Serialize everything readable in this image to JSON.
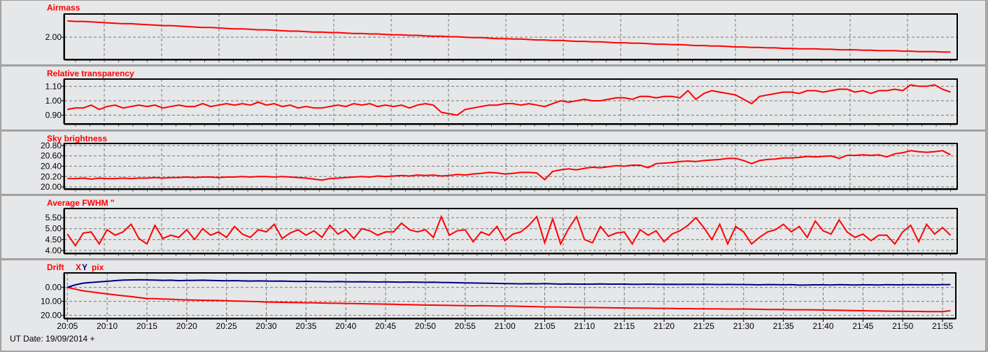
{
  "footer": {
    "ut_date": "UT Date: 19/09/2014 +"
  },
  "drift_legend": {
    "x": "X",
    "y": "Y",
    "unit": "pix"
  },
  "colors": {
    "series_red": "#ff0000",
    "series_navy": "#000080",
    "title": "#ff0000",
    "grid": "#777777",
    "panel_bg": "#e6e7e9"
  },
  "chart_data": {
    "type": "line",
    "x_tick_labels": [
      "20:05",
      "20:10",
      "20:15",
      "20:20",
      "20:25",
      "20:30",
      "20:35",
      "20:40",
      "20:45",
      "20:50",
      "20:55",
      "21:00",
      "21:05",
      "21:10",
      "21:15",
      "21:20",
      "21:25",
      "21:30",
      "21:35",
      "21:40",
      "21:45",
      "21:50",
      "21:55"
    ],
    "x": [
      "20:05",
      "20:06",
      "20:07",
      "20:08",
      "20:09",
      "20:10",
      "20:11",
      "20:12",
      "20:13",
      "20:14",
      "20:15",
      "20:16",
      "20:17",
      "20:18",
      "20:19",
      "20:20",
      "20:21",
      "20:22",
      "20:23",
      "20:24",
      "20:25",
      "20:26",
      "20:27",
      "20:28",
      "20:29",
      "20:30",
      "20:31",
      "20:32",
      "20:33",
      "20:34",
      "20:35",
      "20:36",
      "20:37",
      "20:38",
      "20:39",
      "20:40",
      "20:41",
      "20:42",
      "20:43",
      "20:44",
      "20:45",
      "20:46",
      "20:47",
      "20:48",
      "20:49",
      "20:50",
      "20:51",
      "20:52",
      "20:53",
      "20:54",
      "20:55",
      "20:56",
      "20:57",
      "20:58",
      "20:59",
      "21:00",
      "21:01",
      "21:02",
      "21:03",
      "21:04",
      "21:05",
      "21:06",
      "21:07",
      "21:08",
      "21:09",
      "21:10",
      "21:11",
      "21:12",
      "21:13",
      "21:14",
      "21:15",
      "21:16",
      "21:17",
      "21:18",
      "21:19",
      "21:20",
      "21:21",
      "21:22",
      "21:23",
      "21:24",
      "21:25",
      "21:26",
      "21:27",
      "21:28",
      "21:29",
      "21:30",
      "21:31",
      "21:32",
      "21:33",
      "21:34",
      "21:35",
      "21:36",
      "21:37",
      "21:38",
      "21:39",
      "21:40",
      "21:41",
      "21:42",
      "21:43",
      "21:44",
      "21:45",
      "21:46",
      "21:47",
      "21:48",
      "21:49",
      "21:50",
      "21:51",
      "21:52",
      "21:53",
      "21:54",
      "21:55",
      "21:56"
    ],
    "panels": [
      {
        "title": "Airmass",
        "ylim": [
          1.52,
          2.5
        ],
        "y_ticks": [
          2.0
        ],
        "y_tick_labels": [
          "2.00"
        ],
        "grid": true,
        "series": [
          {
            "color": "#ff0000",
            "values": [
              2.35,
              2.34,
              2.34,
              2.33,
              2.32,
              2.31,
              2.3,
              2.29,
              2.29,
              2.28,
              2.27,
              2.26,
              2.25,
              2.25,
              2.24,
              2.23,
              2.22,
              2.21,
              2.21,
              2.2,
              2.19,
              2.18,
              2.18,
              2.17,
              2.16,
              2.16,
              2.15,
              2.14,
              2.13,
              2.13,
              2.12,
              2.11,
              2.11,
              2.1,
              2.1,
              2.09,
              2.08,
              2.08,
              2.07,
              2.07,
              2.06,
              2.05,
              2.05,
              2.04,
              2.04,
              2.03,
              2.02,
              2.02,
              2.01,
              2.01,
              2.0,
              1.99,
              1.99,
              1.98,
              1.97,
              1.97,
              1.96,
              1.96,
              1.95,
              1.94,
              1.94,
              1.93,
              1.93,
              1.92,
              1.91,
              1.91,
              1.9,
              1.9,
              1.89,
              1.88,
              1.88,
              1.87,
              1.87,
              1.86,
              1.85,
              1.85,
              1.84,
              1.84,
              1.83,
              1.82,
              1.82,
              1.81,
              1.81,
              1.8,
              1.79,
              1.79,
              1.78,
              1.78,
              1.77,
              1.77,
              1.76,
              1.76,
              1.75,
              1.75,
              1.75,
              1.74,
              1.74,
              1.73,
              1.73,
              1.73,
              1.72,
              1.72,
              1.71,
              1.71,
              1.71,
              1.7,
              1.7,
              1.69,
              1.69,
              1.69,
              1.68,
              1.68
            ]
          }
        ]
      },
      {
        "title": "Relative transparency",
        "ylim": [
          0.84,
          1.15
        ],
        "y_ticks": [
          1.1,
          1.0,
          0.9
        ],
        "y_tick_labels": [
          "1.10",
          "1.00",
          "0.90"
        ],
        "grid": true,
        "series": [
          {
            "color": "#ff0000",
            "values": [
              0.94,
              0.95,
              0.95,
              0.97,
              0.94,
              0.96,
              0.97,
              0.95,
              0.96,
              0.97,
              0.96,
              0.97,
              0.95,
              0.96,
              0.97,
              0.96,
              0.96,
              0.98,
              0.96,
              0.97,
              0.98,
              0.97,
              0.98,
              0.97,
              0.99,
              0.97,
              0.98,
              0.96,
              0.97,
              0.95,
              0.96,
              0.95,
              0.95,
              0.96,
              0.97,
              0.96,
              0.98,
              0.97,
              0.98,
              0.96,
              0.97,
              0.96,
              0.97,
              0.95,
              0.97,
              0.98,
              0.97,
              0.92,
              0.91,
              0.9,
              0.94,
              0.95,
              0.96,
              0.97,
              0.97,
              0.98,
              0.98,
              0.97,
              0.98,
              0.97,
              0.96,
              0.98,
              1.0,
              0.99,
              1.0,
              1.01,
              1.0,
              1.0,
              1.01,
              1.02,
              1.02,
              1.01,
              1.03,
              1.03,
              1.02,
              1.03,
              1.03,
              1.02,
              1.07,
              1.01,
              1.05,
              1.07,
              1.06,
              1.05,
              1.04,
              1.01,
              0.98,
              1.03,
              1.04,
              1.05,
              1.06,
              1.06,
              1.05,
              1.07,
              1.07,
              1.06,
              1.07,
              1.08,
              1.08,
              1.06,
              1.07,
              1.05,
              1.07,
              1.07,
              1.08,
              1.07,
              1.11,
              1.1,
              1.1,
              1.11,
              1.08,
              1.06
            ]
          }
        ]
      },
      {
        "title": "Sky brightness",
        "ylim": [
          19.96,
          20.84
        ],
        "y_ticks": [
          20.8,
          20.6,
          20.4,
          20.2,
          20.0
        ],
        "y_tick_labels": [
          "20.80",
          "20.60",
          "20.40",
          "20.20",
          "20.00"
        ],
        "grid": true,
        "series": [
          {
            "color": "#ff0000",
            "values": [
              20.16,
              20.16,
              20.17,
              20.15,
              20.17,
              20.16,
              20.16,
              20.17,
              20.16,
              20.17,
              20.17,
              20.18,
              20.17,
              20.18,
              20.18,
              20.19,
              20.18,
              20.19,
              20.19,
              20.18,
              20.19,
              20.19,
              20.2,
              20.19,
              20.2,
              20.2,
              20.19,
              20.2,
              20.19,
              20.18,
              20.17,
              20.15,
              20.13,
              20.16,
              20.17,
              20.18,
              20.19,
              20.2,
              20.19,
              20.21,
              20.2,
              20.21,
              20.22,
              20.21,
              20.23,
              20.22,
              20.23,
              20.21,
              20.22,
              20.24,
              20.23,
              20.25,
              20.26,
              20.28,
              20.27,
              20.25,
              20.26,
              20.28,
              20.28,
              20.27,
              20.14,
              20.3,
              20.33,
              20.35,
              20.33,
              20.36,
              20.38,
              20.37,
              20.39,
              20.41,
              20.4,
              20.42,
              20.42,
              20.37,
              20.45,
              20.46,
              20.47,
              20.49,
              20.5,
              20.49,
              20.51,
              20.52,
              20.53,
              20.55,
              20.55,
              20.51,
              20.45,
              20.51,
              20.53,
              20.54,
              20.56,
              20.56,
              20.57,
              20.59,
              20.58,
              20.59,
              20.6,
              20.55,
              20.61,
              20.61,
              20.62,
              20.61,
              20.62,
              20.58,
              20.64,
              20.66,
              20.7,
              20.68,
              20.67,
              20.68,
              20.7,
              20.62
            ]
          }
        ]
      },
      {
        "title": "Average FWHM \"",
        "ylim": [
          3.87,
          5.92
        ],
        "y_ticks": [
          5.5,
          5.0,
          4.5,
          4.0
        ],
        "y_tick_labels": [
          "5.50",
          "5.00",
          "4.50",
          "4.00"
        ],
        "grid": true,
        "series": [
          {
            "color": "#ff0000",
            "values": [
              4.75,
              4.22,
              4.8,
              4.85,
              4.3,
              4.95,
              4.7,
              4.85,
              5.2,
              4.55,
              4.3,
              5.15,
              4.55,
              4.7,
              4.6,
              4.95,
              4.5,
              5.0,
              4.7,
              4.85,
              4.6,
              5.1,
              4.75,
              4.6,
              4.95,
              4.85,
              5.2,
              4.55,
              4.8,
              4.95,
              4.7,
              4.9,
              4.6,
              5.15,
              4.75,
              4.95,
              4.55,
              5.0,
              4.9,
              4.7,
              4.85,
              4.85,
              5.25,
              4.95,
              4.85,
              4.95,
              4.6,
              5.55,
              4.7,
              4.9,
              4.95,
              4.4,
              4.85,
              4.7,
              5.1,
              4.45,
              4.75,
              4.85,
              5.15,
              5.55,
              4.35,
              5.45,
              4.3,
              5.0,
              5.55,
              4.5,
              4.35,
              5.1,
              4.65,
              4.8,
              4.85,
              4.3,
              4.95,
              4.7,
              4.9,
              4.4,
              4.75,
              4.9,
              5.15,
              5.5,
              5.05,
              4.5,
              5.2,
              4.3,
              5.1,
              4.85,
              4.3,
              4.6,
              4.85,
              4.95,
              5.2,
              4.85,
              5.1,
              4.6,
              5.35,
              4.9,
              4.75,
              5.4,
              4.85,
              4.6,
              4.75,
              4.45,
              4.7,
              4.7,
              4.3,
              4.85,
              5.15,
              4.4,
              5.2,
              4.75,
              5.05,
              4.7
            ]
          }
        ]
      },
      {
        "title": "Drift",
        "ylim": [
          -10.3,
          22.2
        ],
        "y_axis_inverted": true,
        "y_ticks": [
          0,
          10,
          20
        ],
        "y_tick_labels": [
          "0.00",
          "10.00",
          "20.00"
        ],
        "grid": true,
        "series": [
          {
            "name": "X",
            "color": "#ff0000",
            "values": [
              0.0,
              1.3,
              2.5,
              3.2,
              4.0,
              4.7,
              5.4,
              6.0,
              6.6,
              7.3,
              8.0,
              8.1,
              8.3,
              8.5,
              8.8,
              9.0,
              9.1,
              9.2,
              9.3,
              9.4,
              9.6,
              9.8,
              9.9,
              10.1,
              10.2,
              10.5,
              10.6,
              10.7,
              10.8,
              10.9,
              11.0,
              11.1,
              11.2,
              11.3,
              11.4,
              11.5,
              11.6,
              11.7,
              11.8,
              11.9,
              12.0,
              12.1,
              12.3,
              12.4,
              12.5,
              12.7,
              12.7,
              12.8,
              12.9,
              13.0,
              13.1,
              13.2,
              13.1,
              13.2,
              13.3,
              13.3,
              13.4,
              13.6,
              13.7,
              13.8,
              14.0,
              14.0,
              14.1,
              14.2,
              14.3,
              14.4,
              14.4,
              14.5,
              14.6,
              14.7,
              14.7,
              14.8,
              14.8,
              14.9,
              15.0,
              15.0,
              15.1,
              15.2,
              15.2,
              15.3,
              15.3,
              15.4,
              15.4,
              15.5,
              15.5,
              15.5,
              15.6,
              15.7,
              15.8,
              15.8,
              15.9,
              16.0,
              16.0,
              16.0,
              16.1,
              16.2,
              16.3,
              16.4,
              16.5,
              16.6,
              16.7,
              16.8,
              16.9,
              17.0,
              17.1,
              17.1,
              17.2,
              17.2,
              17.3,
              17.3,
              17.3,
              16.7
            ]
          },
          {
            "name": "Y",
            "color": "#000080",
            "values": [
              0.0,
              -1.8,
              -3.0,
              -3.5,
              -3.9,
              -4.3,
              -4.8,
              -5.2,
              -5.3,
              -5.4,
              -5.3,
              -5.2,
              -5.0,
              -5.1,
              -4.8,
              -4.9,
              -5.0,
              -5.1,
              -4.9,
              -4.8,
              -4.7,
              -4.8,
              -4.6,
              -4.5,
              -4.6,
              -4.5,
              -4.4,
              -4.5,
              -4.3,
              -4.2,
              -4.3,
              -4.2,
              -4.1,
              -4.0,
              -4.1,
              -4.0,
              -3.9,
              -4.0,
              -3.9,
              -3.8,
              -3.9,
              -3.8,
              -3.7,
              -3.8,
              -3.7,
              -3.6,
              -3.7,
              -3.5,
              -3.4,
              -3.3,
              -3.2,
              -3.1,
              -3.0,
              -2.9,
              -2.8,
              -2.7,
              -2.6,
              -2.5,
              -2.6,
              -2.5,
              -2.7,
              -2.5,
              -2.3,
              -2.4,
              -2.3,
              -2.3,
              -2.3,
              -2.4,
              -2.3,
              -2.3,
              -2.3,
              -2.2,
              -2.2,
              -2.3,
              -2.2,
              -2.1,
              -2.2,
              -2.1,
              -2.2,
              -2.1,
              -2.2,
              -2.1,
              -2.0,
              -2.1,
              -2.0,
              -2.0,
              -1.9,
              -1.8,
              -2.0,
              -1.9,
              -1.8,
              -1.9,
              -1.6,
              -1.7,
              -1.8,
              -1.8,
              -1.7,
              -1.9,
              -1.8,
              -1.7,
              -1.8,
              -1.8,
              -1.7,
              -1.9,
              -1.8,
              -1.8,
              -1.9,
              -1.8,
              -1.9,
              -1.8,
              -1.9,
              -2.0
            ]
          }
        ]
      }
    ]
  }
}
